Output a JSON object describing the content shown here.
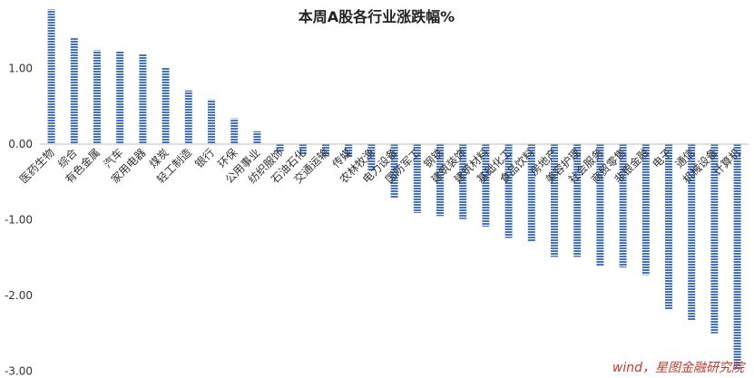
{
  "chart_data": {
    "type": "bar",
    "title": "本周A股各行业涨跌幅%",
    "categories": [
      "医药生物",
      "综合",
      "有色金属",
      "汽车",
      "家用电器",
      "煤炭",
      "轻工制造",
      "银行",
      "环保",
      "公用事业",
      "纺织服饰",
      "石油石化",
      "交通运输",
      "传媒",
      "农林牧渔",
      "电力设备",
      "国防军工",
      "钢铁",
      "建筑装饰",
      "建筑材料",
      "基础化工",
      "食品饮料",
      "房地产",
      "美容护理",
      "社会服务",
      "商贸零售",
      "非银金融",
      "电子",
      "通信",
      "机械设备",
      "计算机"
    ],
    "values": [
      1.78,
      1.4,
      1.24,
      1.23,
      1.19,
      1.01,
      0.71,
      0.59,
      0.34,
      0.17,
      -0.1,
      -0.14,
      -0.16,
      -0.17,
      -0.36,
      -0.71,
      -0.91,
      -0.95,
      -0.99,
      -1.09,
      -1.24,
      -1.29,
      -1.49,
      -1.49,
      -1.61,
      -1.63,
      -1.73,
      -2.19,
      -2.33,
      -2.5,
      -2.98
    ],
    "yticks": [
      1.0,
      0.0,
      -1.0,
      -2.0,
      -3.0
    ],
    "ytick_labels": [
      "1.00",
      "0.00",
      "-1.00",
      "-2.00",
      "-3.00"
    ],
    "ylim": [
      -3.0,
      1.78
    ],
    "bar_color": "#4472c4",
    "bar_style": "horizontal-striped",
    "grid": false,
    "xlabel": "",
    "ylabel": ""
  },
  "source_note": "wind，星图金融研究院"
}
